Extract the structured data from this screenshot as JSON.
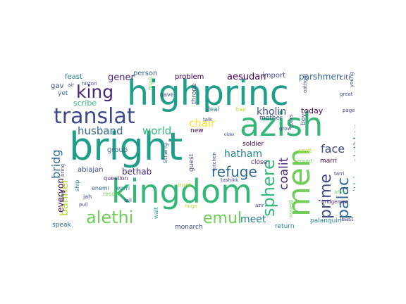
{
  "palette": {
    "dark_purple": "#440154",
    "purple": "#482878",
    "indigo": "#3e4a89",
    "blue": "#31688e",
    "steel": "#26828e",
    "teal": "#1f9e89",
    "green": "#35b779",
    "lime": "#6ece58",
    "yellowgreen": "#b5de2b",
    "yellow": "#fde725"
  },
  "words": [
    {
      "text": "bright",
      "color": "#1f9e89"
    },
    {
      "text": "highprinc",
      "color": "#1f9e89"
    },
    {
      "text": "kingdom",
      "color": "#35b779"
    },
    {
      "text": "azish",
      "color": "#35b779"
    },
    {
      "text": "men",
      "color": "#6ece58"
    },
    {
      "text": "translat",
      "color": "#3e4a89"
    },
    {
      "text": "alethi",
      "color": "#6ece58"
    },
    {
      "text": "king",
      "color": "#482878"
    },
    {
      "text": "sphere",
      "color": "#35b779"
    },
    {
      "text": "emul",
      "color": "#6ece58"
    },
    {
      "text": "prime",
      "color": "#3e4a89"
    },
    {
      "text": "palac",
      "color": "#31688e"
    },
    {
      "text": "refuge",
      "color": "#31688e"
    },
    {
      "text": "coalit",
      "color": "#482878"
    },
    {
      "text": "bridg",
      "color": "#31688e"
    },
    {
      "text": "banner",
      "color": "#b5de2b"
    },
    {
      "text": "face",
      "color": "#3e4a89"
    },
    {
      "text": "husband",
      "color": "#31688e"
    },
    {
      "text": "world",
      "color": "#35b779"
    },
    {
      "text": "chair",
      "color": "#fde725"
    },
    {
      "text": "kholin",
      "color": "#3e4a89"
    },
    {
      "text": "hatham",
      "color": "#26828e"
    },
    {
      "text": "meet",
      "color": "#26828e"
    },
    {
      "text": "alethkar",
      "color": "#26828e"
    },
    {
      "text": "urithiru",
      "color": "#35b779"
    },
    {
      "text": "gener",
      "color": "#482878"
    },
    {
      "text": "scribe",
      "color": "#35b779"
    },
    {
      "text": "bethab",
      "color": "#482878"
    },
    {
      "text": "everyon",
      "color": "#440154"
    },
    {
      "text": "aesudan",
      "color": "#440154"
    },
    {
      "text": "parshmen",
      "color": "#31688e"
    },
    {
      "text": "import",
      "color": "#3e4a89"
    },
    {
      "text": "citi",
      "color": "#3e4a89"
    },
    {
      "text": "feast",
      "color": "#26828e"
    },
    {
      "text": "person",
      "color": "#31688e"
    },
    {
      "text": "problem",
      "color": "#440154"
    },
    {
      "text": "gav",
      "color": "#3e4a89"
    },
    {
      "text": "yet",
      "color": "#31688e"
    },
    {
      "text": "today",
      "color": "#440154"
    },
    {
      "text": "deal",
      "color": "#26828e"
    },
    {
      "text": "new",
      "color": "#440154"
    },
    {
      "text": "soldier",
      "color": "#440154"
    },
    {
      "text": "group",
      "color": "#31688e"
    },
    {
      "text": "abiajan",
      "color": "#3e4a89"
    },
    {
      "text": "strang",
      "color": "#31688e"
    },
    {
      "text": "guest",
      "color": "#3e4a89"
    },
    {
      "text": "question",
      "color": "#482878"
    },
    {
      "text": "enemi",
      "color": "#31688e"
    },
    {
      "text": "worri",
      "color": "#26828e"
    },
    {
      "text": "invit",
      "color": "#b5de2b"
    },
    {
      "text": "record",
      "color": "#6ece58"
    },
    {
      "text": "tashikk",
      "color": "#3e4a89"
    },
    {
      "text": "close",
      "color": "#482878"
    },
    {
      "text": "seat",
      "color": "#b5de2b"
    },
    {
      "text": "marri",
      "color": "#440154"
    },
    {
      "text": "mother",
      "color": "#3e4a89"
    },
    {
      "text": "boy",
      "color": "#3e4a89"
    },
    {
      "text": "speak",
      "color": "#31688e"
    },
    {
      "text": "monarch",
      "color": "#3e4a89"
    },
    {
      "text": "walt",
      "color": "#1f9e89"
    },
    {
      "text": "return",
      "color": "#26828e"
    },
    {
      "text": "palanquin",
      "color": "#26828e"
    },
    {
      "text": "least",
      "color": "#3e4a89"
    },
    {
      "text": "throne",
      "color": "#3e4a89"
    },
    {
      "text": "gave",
      "color": "#3e4a89"
    },
    {
      "text": "kitchen",
      "color": "#3e4a89"
    },
    {
      "text": "ship",
      "color": "#26828e"
    },
    {
      "text": "jah",
      "color": "#3e4a89"
    },
    {
      "text": "pull",
      "color": "#3e4a89"
    },
    {
      "text": "tall",
      "color": "#3e4a89"
    },
    {
      "text": "air",
      "color": "#3e4a89"
    },
    {
      "text": "histori",
      "color": "#3e4a89"
    },
    {
      "text": "great",
      "color": "#3e4a89"
    },
    {
      "text": "page",
      "color": "#3e4a89"
    },
    {
      "text": "young",
      "color": "#3e4a89"
    },
    {
      "text": "oathgat",
      "color": "#3e4a89"
    },
    {
      "text": "cours",
      "color": "#3e4a89"
    },
    {
      "text": "grow",
      "color": "#3e4a89"
    },
    {
      "text": "hair",
      "color": "#b5de2b"
    },
    {
      "text": "finalli",
      "color": "#6ece58"
    },
    {
      "text": "talk",
      "color": "#3e4a89"
    },
    {
      "text": "older",
      "color": "#3e4a89"
    },
    {
      "text": "report",
      "color": "#6ece58"
    },
    {
      "text": "tarri",
      "color": "#3e4a89"
    },
    {
      "text": "arriv",
      "color": "#6ece58"
    },
    {
      "text": "bridgemen",
      "color": "#482878"
    },
    {
      "text": "azir",
      "color": "#3e4a89"
    },
    {
      "text": "majesti",
      "color": "#6ece58"
    },
    {
      "text": "bring",
      "color": "#3e4a89"
    },
    {
      "text": "town",
      "color": "#3e4a89"
    },
    {
      "text": "huge",
      "color": "#b5de2b"
    }
  ]
}
